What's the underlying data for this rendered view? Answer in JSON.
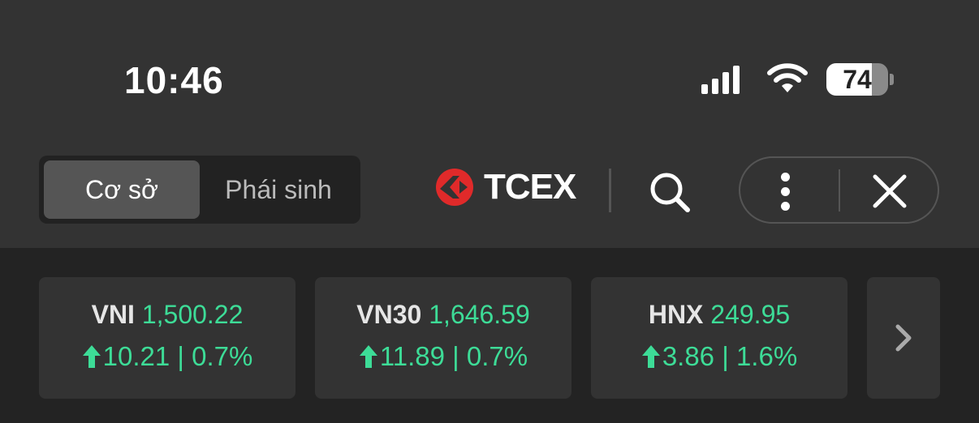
{
  "status_bar": {
    "time": "10:46",
    "battery": "74",
    "battery_level_percent": 74
  },
  "header": {
    "segments": [
      {
        "label": "Cơ sở",
        "active": true
      },
      {
        "label": "Phái sinh",
        "active": false
      }
    ],
    "logo_text": "TCEX",
    "brand_color": "#e02a2a"
  },
  "indices": [
    {
      "name": "VNI",
      "value": "1,500.22",
      "change": "10.21 | 0.7%",
      "direction": "up"
    },
    {
      "name": "VN30",
      "value": "1,646.59",
      "change": "11.89 | 0.7%",
      "direction": "up"
    },
    {
      "name": "HNX",
      "value": "249.95",
      "change": "3.86 | 1.6%",
      "direction": "up"
    }
  ],
  "colors": {
    "up": "#3ddc97",
    "background_top": "#333333",
    "background_bottom": "#232323"
  }
}
